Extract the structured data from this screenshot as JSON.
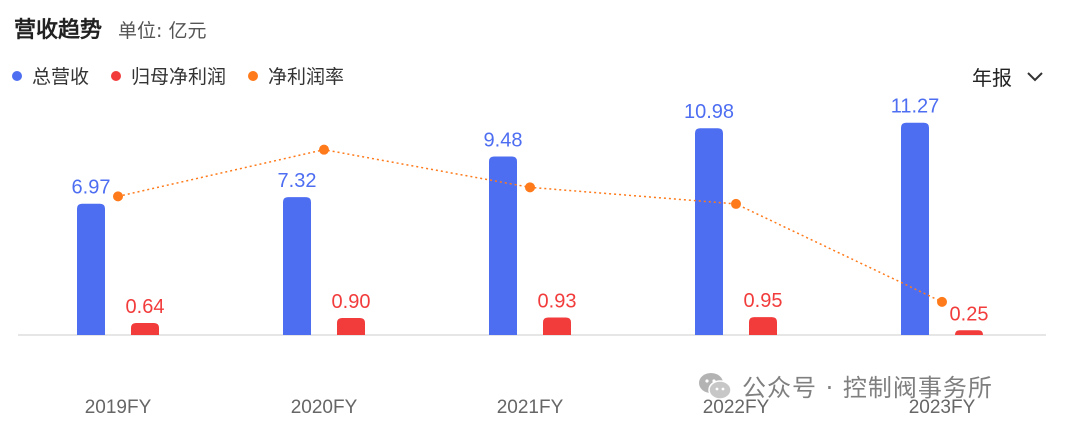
{
  "header": {
    "title": "营收趋势",
    "unit": "单位: 亿元"
  },
  "legend": [
    {
      "label": "总营收",
      "color": "#4e6ef2",
      "icon": "circle-dot"
    },
    {
      "label": "归母净利润",
      "color": "#f23c3c",
      "icon": "circle-dot"
    },
    {
      "label": "净利润率",
      "color": "#ff7a1a",
      "icon": "circle-dot"
    }
  ],
  "period_selector": {
    "label": "年报",
    "icon": "chevron-down-icon"
  },
  "watermark": {
    "text": "公众号 · 控制阀事务所",
    "icon": "wechat-icon"
  },
  "chart_data": {
    "type": "bar",
    "categories": [
      "2019FY",
      "2020FY",
      "2021FY",
      "2022FY",
      "2023FY"
    ],
    "series": [
      {
        "name": "总营收",
        "type": "bar",
        "color": "#4e6ef2",
        "values": [
          6.97,
          7.32,
          9.48,
          10.98,
          11.27
        ]
      },
      {
        "name": "归母净利润",
        "type": "bar",
        "color": "#f23c3c",
        "values": [
          0.64,
          0.9,
          0.93,
          0.95,
          0.25
        ]
      },
      {
        "name": "净利润率",
        "type": "line",
        "color": "#ff7a1a",
        "values": [
          9.2,
          12.3,
          9.8,
          8.7,
          2.2
        ]
      }
    ],
    "ylim": [
      0,
      12
    ],
    "y2lim": [
      0,
      15
    ],
    "grid": false,
    "legend_position": "top-left"
  }
}
